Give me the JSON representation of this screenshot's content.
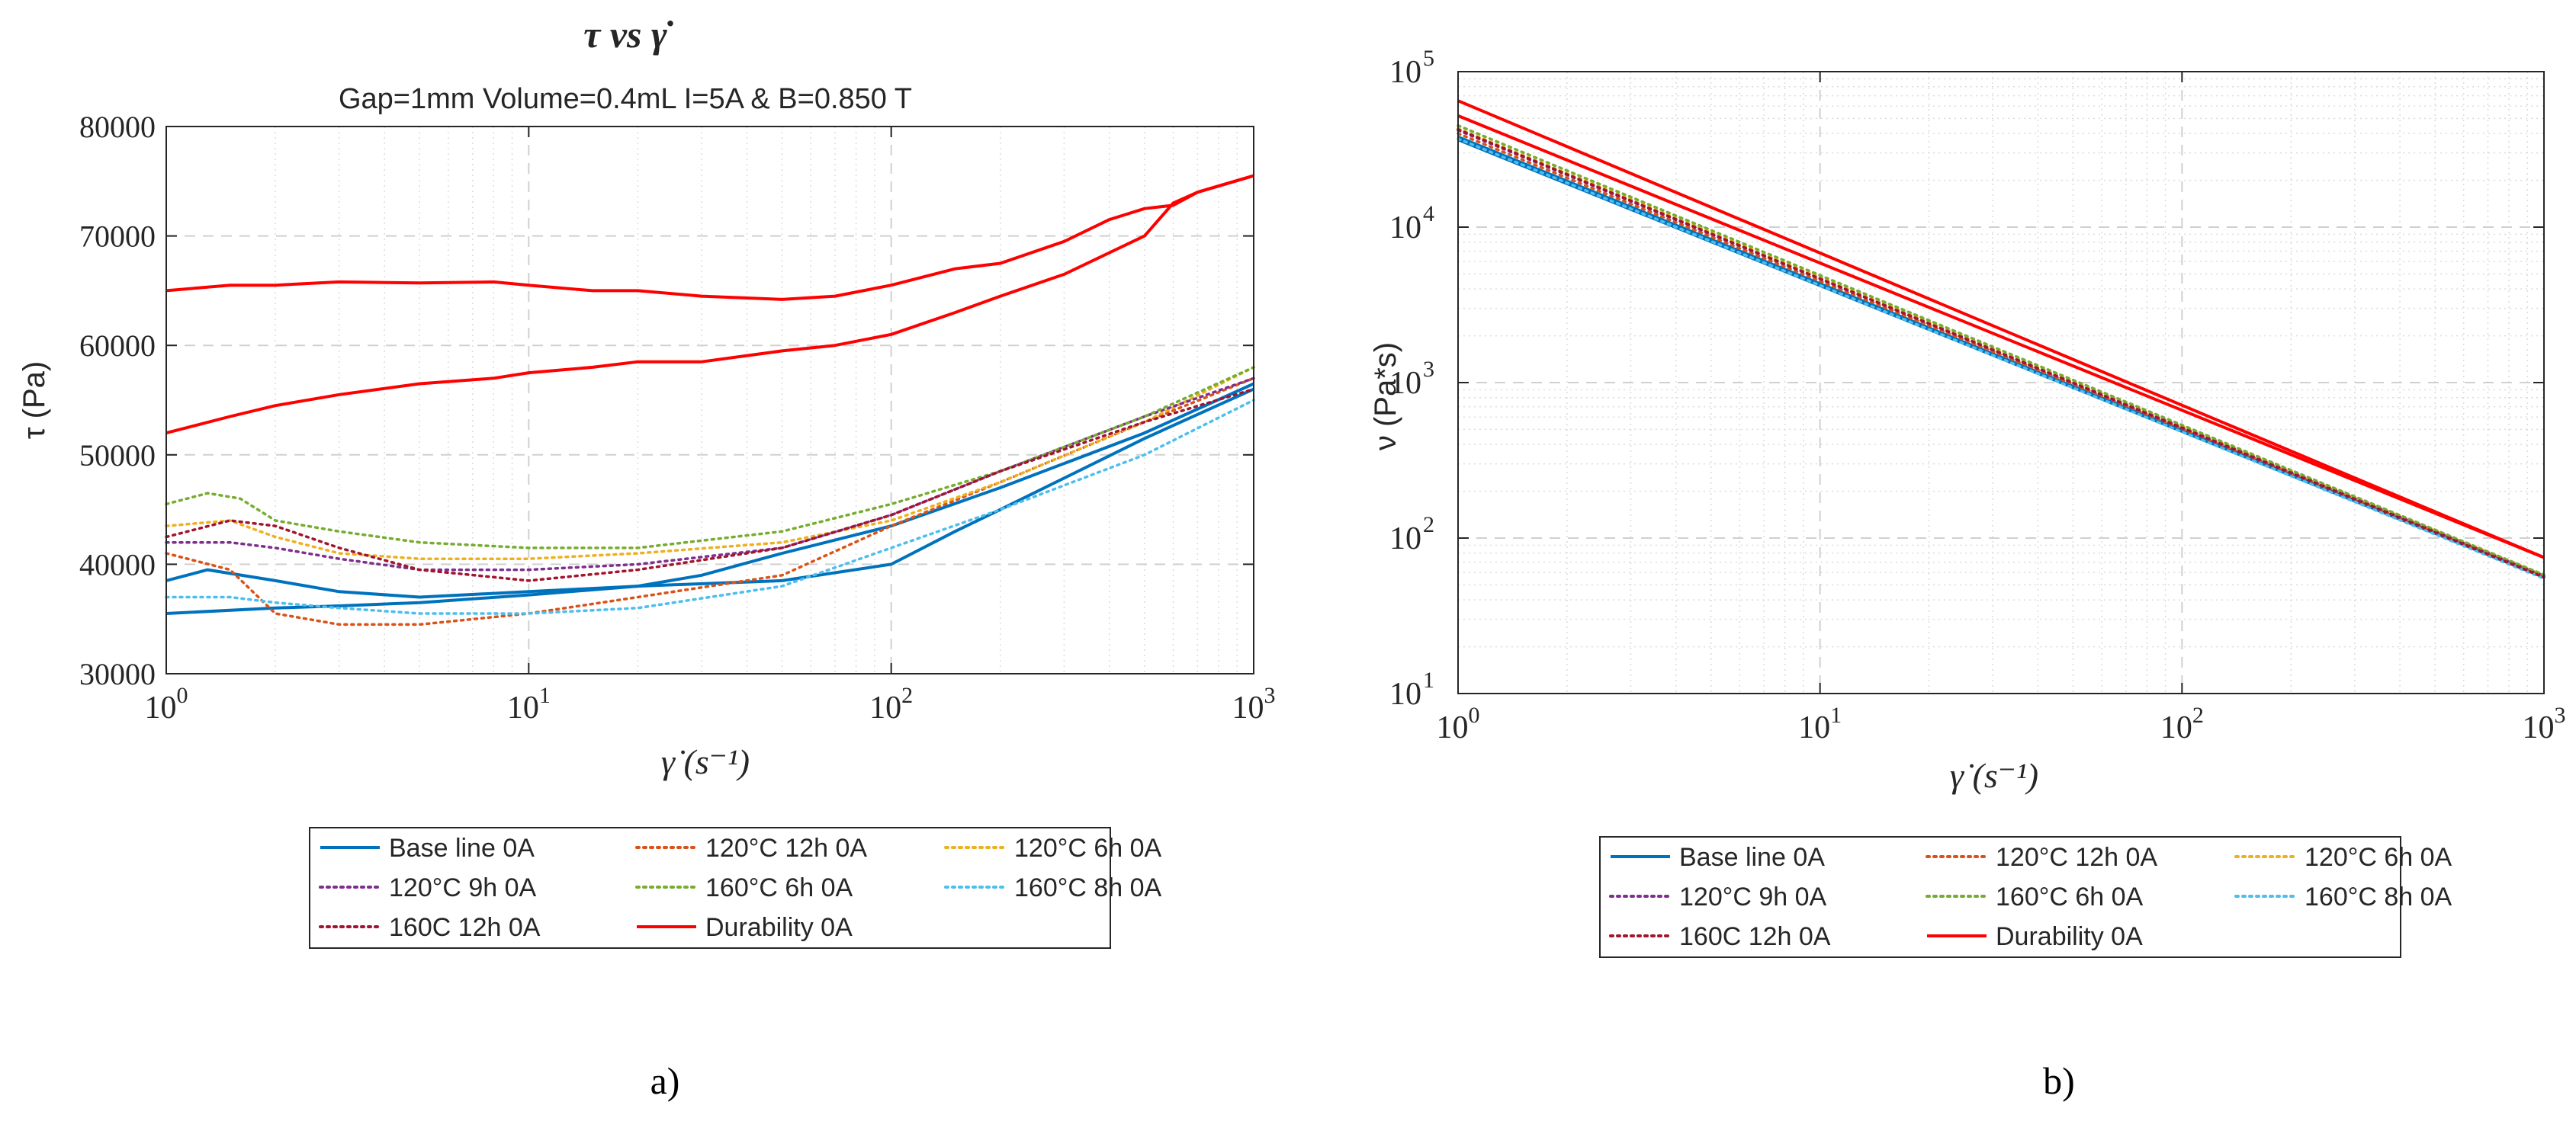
{
  "chart_data": [
    {
      "panel": "a)",
      "type": "line",
      "title": "τ  vs  γ̇",
      "subtitle": "Gap=1mm Volume=0.4mL I=5A & B=0.850 T",
      "xlabel": "γ̇ (s⁻¹)",
      "ylabel": "τ (Pa)",
      "xscale": "log",
      "xlim": [
        1,
        1000
      ],
      "ylim": [
        30000,
        80000
      ],
      "xticks": [
        1,
        10,
        100,
        1000
      ],
      "xtick_labels": [
        "10",
        "10",
        "10",
        "10"
      ],
      "xtick_exps": [
        "0",
        "1",
        "2",
        "3"
      ],
      "yticks": [
        30000,
        40000,
        50000,
        60000,
        70000,
        80000
      ],
      "ytick_labels": [
        "30000",
        "40000",
        "50000",
        "60000",
        "70000",
        "80000"
      ],
      "grid": true,
      "legend_position": "bottom-outside",
      "series": [
        {
          "name": "Base line 0A",
          "color": "#0072BD",
          "style": "solid",
          "x": [
            1,
            2,
            3,
            5,
            10,
            20,
            30,
            50,
            100,
            200,
            500,
            1000
          ],
          "y": [
            35500,
            36000,
            36200,
            36500,
            37200,
            38000,
            39000,
            41000,
            43500,
            47000,
            52000,
            56500
          ]
        },
        {
          "name": "Base line 0A",
          "color": "#0072BD",
          "style": "solid",
          "x": [
            1,
            1.3,
            2,
            3,
            5,
            10,
            20,
            50,
            100,
            150,
            200,
            500,
            1000
          ],
          "y": [
            38500,
            39500,
            38500,
            37500,
            37000,
            37500,
            38000,
            38500,
            40000,
            43000,
            45000,
            51500,
            56000
          ]
        },
        {
          "name": "120°C 12h 0A",
          "color": "#D95319",
          "style": "dotted",
          "x": [
            1,
            1.5,
            2,
            3,
            5,
            10,
            20,
            50,
            100,
            200,
            500,
            1000
          ],
          "y": [
            41000,
            39500,
            35500,
            34500,
            34500,
            35500,
            37000,
            39000,
            43500,
            47500,
            53000,
            57000
          ]
        },
        {
          "name": "120°C 6h 0A",
          "color": "#EDB120",
          "style": "dotted",
          "x": [
            1,
            1.5,
            2,
            3,
            5,
            10,
            20,
            50,
            100,
            200,
            500,
            1000
          ],
          "y": [
            43500,
            44000,
            42500,
            41000,
            40500,
            40500,
            41000,
            42000,
            44000,
            47500,
            53000,
            58000
          ]
        },
        {
          "name": "120°C 9h 0A",
          "color": "#7E2F8E",
          "style": "dotted",
          "x": [
            1,
            1.5,
            2,
            3,
            5,
            10,
            20,
            50,
            100,
            200,
            500,
            1000
          ],
          "y": [
            42000,
            42000,
            41500,
            40500,
            39500,
            39500,
            40000,
            41500,
            44500,
            48500,
            53500,
            57000
          ]
        },
        {
          "name": "160°C 6h 0A",
          "color": "#77AC30",
          "style": "dotted",
          "x": [
            1,
            1.3,
            1.6,
            2,
            3,
            5,
            10,
            20,
            50,
            100,
            200,
            500,
            1000
          ],
          "y": [
            45500,
            46500,
            46000,
            44000,
            43000,
            42000,
            41500,
            41500,
            43000,
            45500,
            48500,
            53500,
            58000
          ]
        },
        {
          "name": "160°C 8h 0A",
          "color": "#4DBEEE",
          "style": "dotted",
          "x": [
            1,
            1.5,
            2,
            3,
            5,
            10,
            20,
            50,
            100,
            200,
            500,
            1000
          ],
          "y": [
            37000,
            37000,
            36500,
            36000,
            35500,
            35500,
            36000,
            38000,
            41500,
            45000,
            50000,
            55000
          ]
        },
        {
          "name": "160C 12h 0A",
          "color": "#A2142F",
          "style": "dotted",
          "x": [
            1,
            1.5,
            2,
            3,
            5,
            10,
            20,
            50,
            100,
            200,
            500,
            1000
          ],
          "y": [
            42500,
            44000,
            43500,
            41500,
            39500,
            38500,
            39500,
            41500,
            44500,
            48500,
            53000,
            56000
          ]
        },
        {
          "name": "Durability 0A",
          "color": "#FF0000",
          "style": "solid",
          "x": [
            1,
            1.5,
            2,
            3,
            5,
            8,
            10,
            15,
            20,
            30,
            50,
            70,
            100,
            150,
            200,
            300,
            400,
            500,
            600,
            700,
            1000
          ],
          "y": [
            65000,
            65500,
            65500,
            65800,
            65700,
            65800,
            65500,
            65000,
            65000,
            64500,
            64200,
            64500,
            65500,
            67000,
            67500,
            69500,
            71500,
            72500,
            72800,
            74000,
            75500
          ]
        },
        {
          "name": "Durability 0A",
          "color": "#FF0000",
          "style": "solid",
          "x": [
            1,
            1.5,
            2,
            3,
            5,
            8,
            10,
            15,
            20,
            30,
            50,
            70,
            100,
            150,
            200,
            300,
            500,
            600,
            700,
            1000
          ],
          "y": [
            52000,
            53500,
            54500,
            55500,
            56500,
            57000,
            57500,
            58000,
            58500,
            58500,
            59500,
            60000,
            61000,
            63000,
            64500,
            66500,
            70000,
            73000,
            74000,
            75500
          ]
        }
      ]
    },
    {
      "panel": "b)",
      "type": "line",
      "title": "",
      "xlabel": "γ̇ (s⁻¹)",
      "ylabel": "ν (Pa*s)",
      "xscale": "log",
      "yscale": "log",
      "xlim": [
        1,
        1000
      ],
      "ylim": [
        10,
        100000
      ],
      "xticks": [
        1,
        10,
        100,
        1000
      ],
      "xtick_labels": [
        "10",
        "10",
        "10",
        "10"
      ],
      "xtick_exps": [
        "0",
        "1",
        "2",
        "3"
      ],
      "yticks": [
        10,
        100,
        1000,
        10000,
        100000
      ],
      "ytick_labels": [
        "10",
        "10",
        "10",
        "10",
        "10"
      ],
      "ytick_exps": [
        "1",
        "2",
        "3",
        "4",
        "5"
      ],
      "grid": true,
      "legend_position": "bottom-outside",
      "series": [
        {
          "name": "Base line 0A",
          "color": "#0072BD",
          "style": "solid",
          "x": [
            1,
            1000
          ],
          "y": [
            36500,
            56
          ]
        },
        {
          "name": "Base line 0A",
          "color": "#0072BD",
          "style": "solid",
          "x": [
            1,
            1000
          ],
          "y": [
            38000,
            56
          ]
        },
        {
          "name": "120°C 12h 0A",
          "color": "#D95319",
          "style": "dotted",
          "x": [
            1,
            1000
          ],
          "y": [
            40000,
            57
          ]
        },
        {
          "name": "120°C 6h 0A",
          "color": "#EDB120",
          "style": "dotted",
          "x": [
            1,
            1000
          ],
          "y": [
            43000,
            58
          ]
        },
        {
          "name": "120°C 9h 0A",
          "color": "#7E2F8E",
          "style": "dotted",
          "x": [
            1,
            1000
          ],
          "y": [
            42000,
            57
          ]
        },
        {
          "name": "160°C 6h 0A",
          "color": "#77AC30",
          "style": "dotted",
          "x": [
            1,
            1000
          ],
          "y": [
            45000,
            58
          ]
        },
        {
          "name": "160°C 8h 0A",
          "color": "#4DBEEE",
          "style": "dotted",
          "x": [
            1,
            1000
          ],
          "y": [
            37000,
            55
          ]
        },
        {
          "name": "160C 12h 0A",
          "color": "#A2142F",
          "style": "dotted",
          "x": [
            1,
            1000
          ],
          "y": [
            42500,
            56
          ]
        },
        {
          "name": "Durability 0A",
          "color": "#FF0000",
          "style": "solid",
          "x": [
            1,
            1000
          ],
          "y": [
            65000,
            75
          ]
        },
        {
          "name": "Durability 0A",
          "color": "#FF0000",
          "style": "solid",
          "x": [
            1,
            1000
          ],
          "y": [
            52000,
            75
          ]
        }
      ]
    }
  ],
  "legend": {
    "items": [
      {
        "label": "Base line 0A",
        "color": "#0072BD",
        "style": "solid"
      },
      {
        "label": "120°C 12h 0A",
        "color": "#D95319",
        "style": "dotted"
      },
      {
        "label": "120°C 6h 0A",
        "color": "#EDB120",
        "style": "dotted"
      },
      {
        "label": "120°C 9h 0A",
        "color": "#7E2F8E",
        "style": "dotted"
      },
      {
        "label": "160°C 6h 0A",
        "color": "#77AC30",
        "style": "dotted"
      },
      {
        "label": "160°C 8h 0A",
        "color": "#4DBEEE",
        "style": "dotted"
      },
      {
        "label": "160C 12h 0A",
        "color": "#A2142F",
        "style": "dotted"
      },
      {
        "label": "Durability 0A",
        "color": "#FF0000",
        "style": "solid"
      }
    ]
  },
  "captions": {
    "a": "a)",
    "b": "b)"
  }
}
